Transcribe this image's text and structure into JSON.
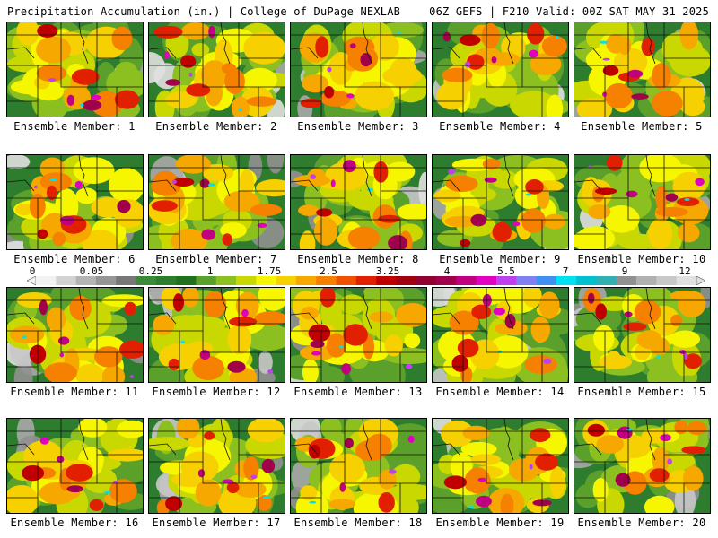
{
  "header": {
    "left": "Precipitation Accumulation (in.) | College of DuPage NEXLAB",
    "right": "06Z GEFS | F210 Valid: 00Z SAT MAY 31 2025"
  },
  "colorbar": {
    "tick_labels": [
      "0",
      "0.05",
      "0.25",
      "1",
      "1.75",
      "2.5",
      "3.25",
      "4",
      "5.5",
      "7",
      "9",
      "12"
    ],
    "colors": [
      "#f2f2f2",
      "#d2d2d2",
      "#b4b4b4",
      "#969696",
      "#787878",
      "#3a8a3a",
      "#2e7d2e",
      "#207020",
      "#5aa02a",
      "#8cc020",
      "#c8d800",
      "#f6f600",
      "#f6d000",
      "#f6a800",
      "#f68000",
      "#f05000",
      "#e02000",
      "#c00000",
      "#a00010",
      "#900030",
      "#a0004c",
      "#c00080",
      "#e000c0",
      "#c040f0",
      "#8080f0",
      "#4090f0",
      "#00e0f0",
      "#00c0d0",
      "#30b0b0",
      "#909090",
      "#b0b0b0",
      "#c8c8c8",
      "#e0e0e0"
    ]
  },
  "members": [
    {
      "label": "Ensemble Member: 1"
    },
    {
      "label": "Ensemble Member: 2"
    },
    {
      "label": "Ensemble Member: 3"
    },
    {
      "label": "Ensemble Member: 4"
    },
    {
      "label": "Ensemble Member: 5"
    },
    {
      "label": "Ensemble Member: 6"
    },
    {
      "label": "Ensemble Member: 7"
    },
    {
      "label": "Ensemble Member: 8"
    },
    {
      "label": "Ensemble Member: 9"
    },
    {
      "label": "Ensemble Member: 10"
    },
    {
      "label": "Ensemble Member: 11"
    },
    {
      "label": "Ensemble Member: 12"
    },
    {
      "label": "Ensemble Member: 13"
    },
    {
      "label": "Ensemble Member: 14"
    },
    {
      "label": "Ensemble Member: 15"
    },
    {
      "label": "Ensemble Member: 16"
    },
    {
      "label": "Ensemble Member: 17"
    },
    {
      "label": "Ensemble Member: 18"
    },
    {
      "label": "Ensemble Member: 19"
    },
    {
      "label": "Ensemble Member: 20"
    }
  ]
}
